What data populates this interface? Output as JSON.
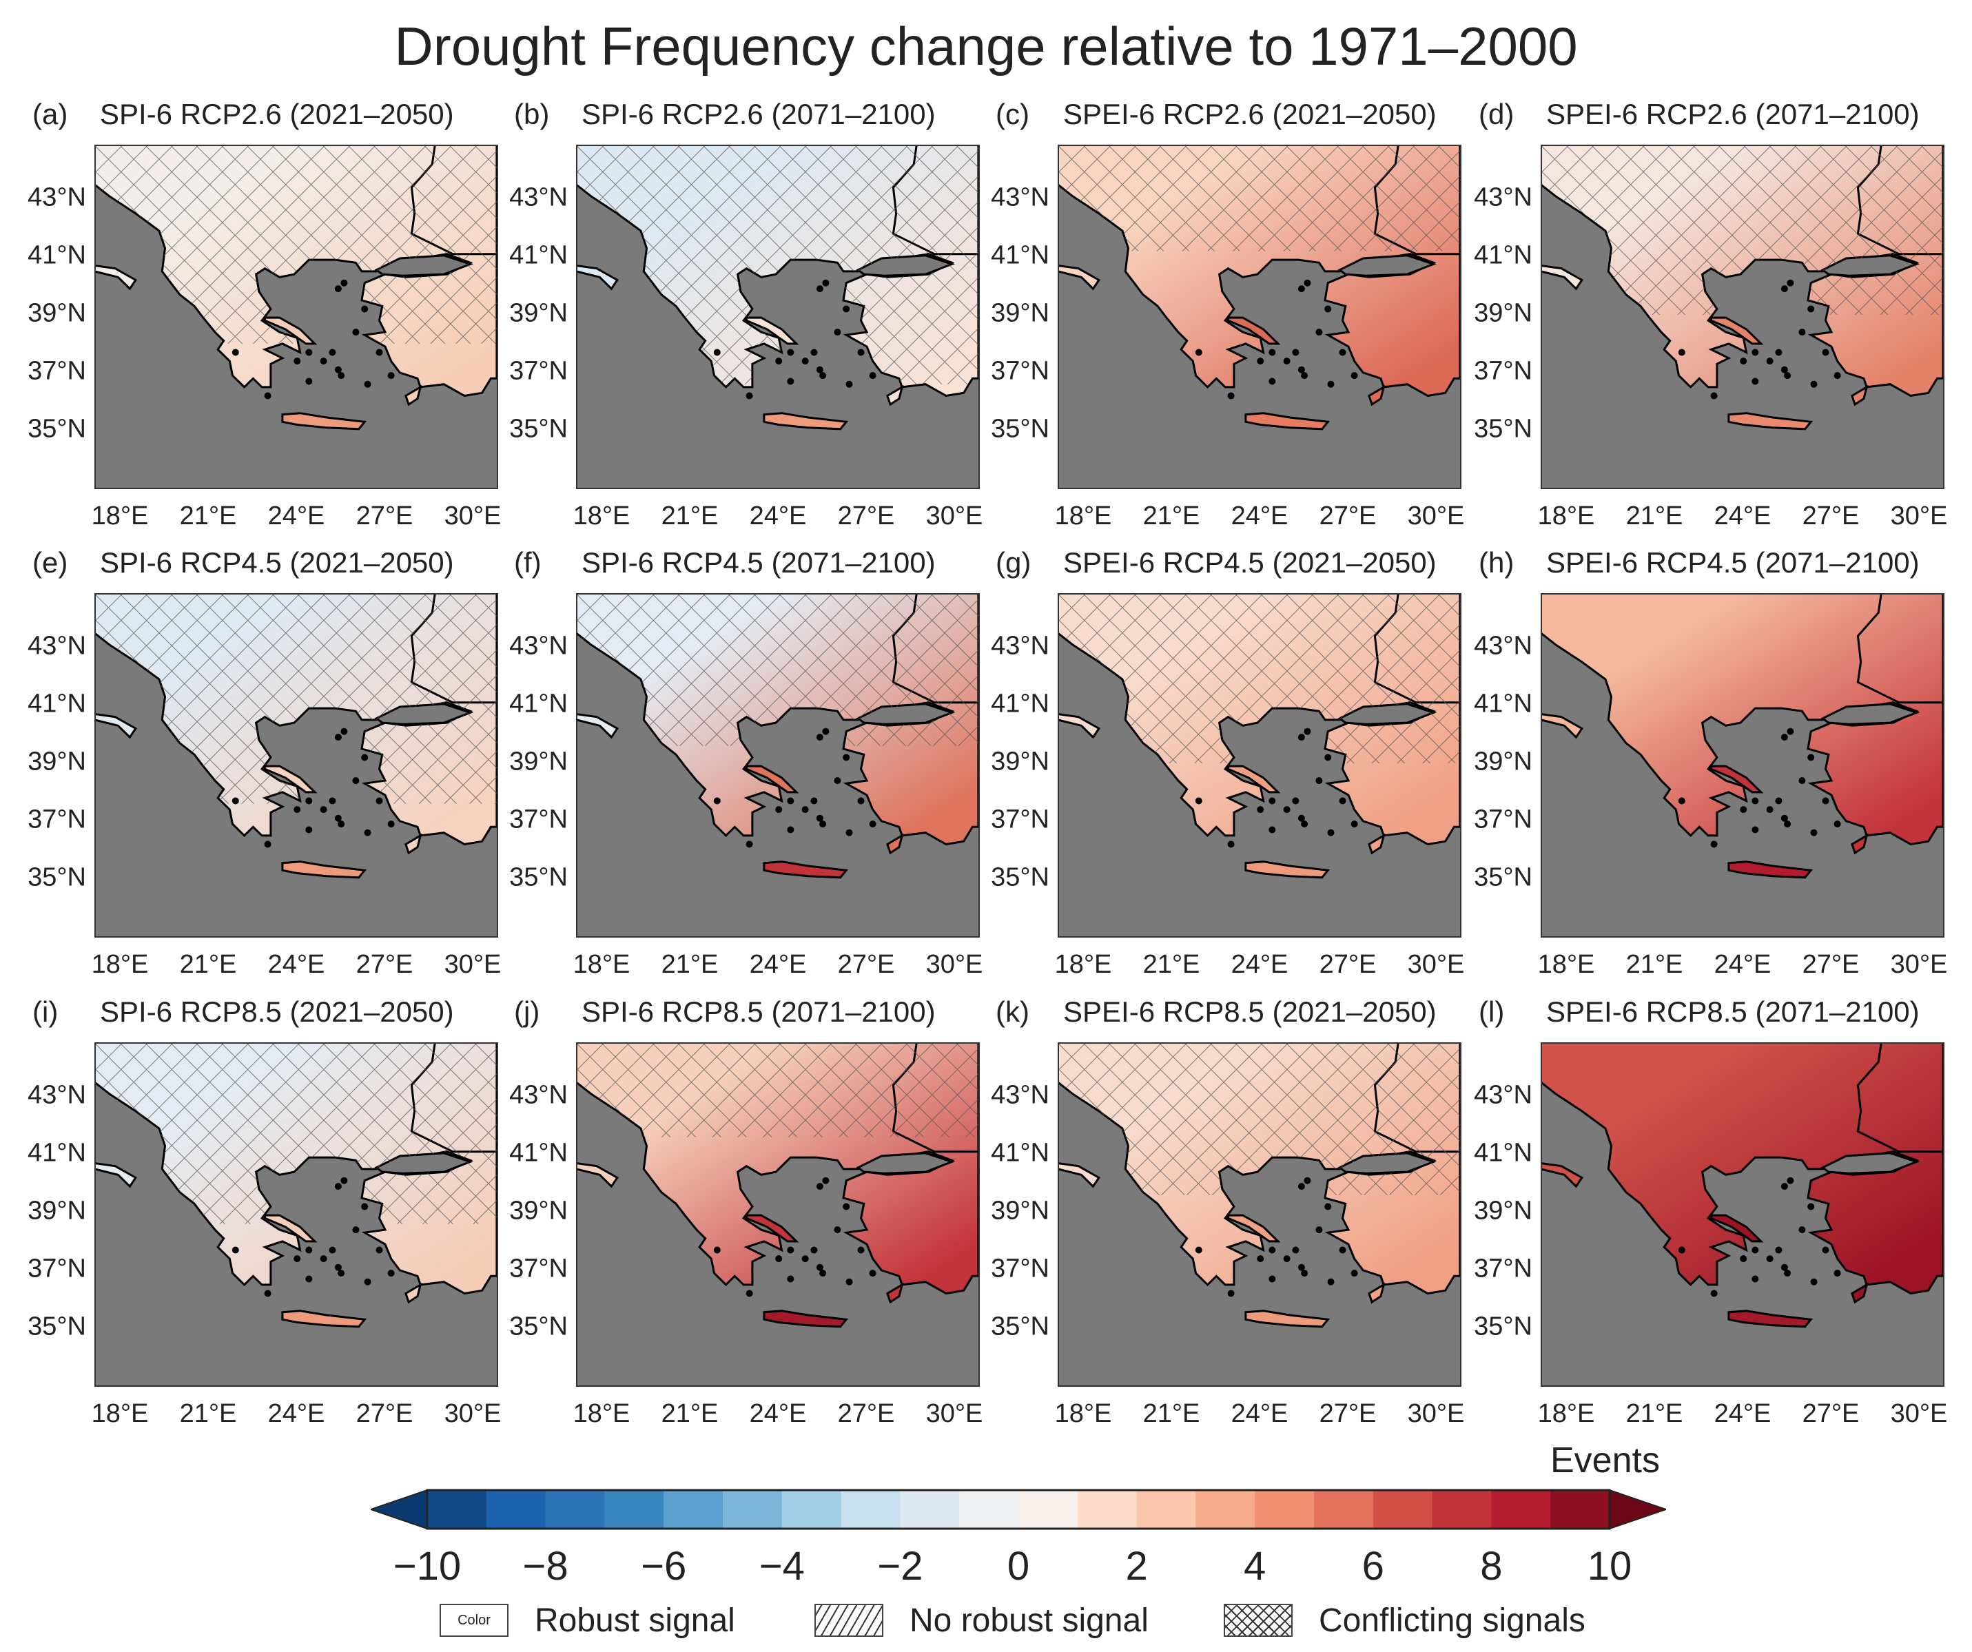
{
  "title": "Drought Frequency change relative to 1971–2000",
  "lat_labels": [
    "43°N",
    "41°N",
    "39°N",
    "37°N",
    "35°N"
  ],
  "lon_labels": [
    "18°E",
    "21°E",
    "24°E",
    "27°E",
    "30°E"
  ],
  "panels": [
    {
      "label": "(a)",
      "title": "SPI-6 RCP2.6 (2021–2050)",
      "north_color": "#f3eee9",
      "south_color": "#f7cdb6",
      "crete_color": "#ee9a7c",
      "hatch_north_of_lat": 38
    },
    {
      "label": "(b)",
      "title": "SPI-6 RCP2.6 (2071–2100)",
      "north_color": "#dde9f2",
      "south_color": "#f8e2d6",
      "crete_color": "#ee9a7c",
      "hatch_north_of_lat": 36.6
    },
    {
      "label": "(c)",
      "title": "SPEI-6 RCP2.6 (2021–2050)",
      "north_color": "#f9d4c0",
      "south_color": "#dc6a57",
      "crete_color": "#e67b61",
      "hatch_north_of_lat": 41.2
    },
    {
      "label": "(d)",
      "title": "SPEI-6 RCP2.6 (2071–2100)",
      "north_color": "#f5e6de",
      "south_color": "#e5836a",
      "crete_color": "#e98a70",
      "hatch_north_of_lat": 39
    },
    {
      "label": "(e)",
      "title": "SPI-6 RCP4.5 (2021–2050)",
      "north_color": "#dfe9f2",
      "south_color": "#f6d2bf",
      "crete_color": "#ee9a7c",
      "hatch_north_of_lat": 37.6
    },
    {
      "label": "(f)",
      "title": "SPI-6 RCP4.5 (2071–2100)",
      "north_color": "#e4ecf3",
      "south_color": "#df735c",
      "crete_color": "#c3343a",
      "hatch_north_of_lat": 39.6
    },
    {
      "label": "(g)",
      "title": "SPEI-6 RCP4.5 (2021–2050)",
      "north_color": "#f8dccd",
      "south_color": "#f0a084",
      "crete_color": "#ee9a7c",
      "hatch_north_of_lat": 39
    },
    {
      "label": "(h)",
      "title": "SPEI-6 RCP4.5 (2071–2100)",
      "north_color": "#f5b89c",
      "south_color": "#c3343a",
      "crete_color": "#b31b2e",
      "hatch_north_of_lat": 44.9
    },
    {
      "label": "(i)",
      "title": "SPI-6 RCP8.5 (2021–2050)",
      "north_color": "#e4ecf3",
      "south_color": "#f6cdb8",
      "crete_color": "#ee9a7c",
      "hatch_north_of_lat": 38.6
    },
    {
      "label": "(j)",
      "title": "SPI-6 RCP8.5 (2071–2100)",
      "north_color": "#f6d0bc",
      "south_color": "#c3343a",
      "crete_color": "#a31a2b",
      "hatch_north_of_lat": 41.6
    },
    {
      "label": "(k)",
      "title": "SPEI-6 RCP8.5 (2021–2050)",
      "north_color": "#f7dccd",
      "south_color": "#f0a084",
      "crete_color": "#ee9a7c",
      "hatch_north_of_lat": 39.6
    },
    {
      "label": "(l)",
      "title": "SPEI-6 RCP8.5 (2071–2100)",
      "north_color": "#d0524a",
      "south_color": "#9c1326",
      "crete_color": "#a31a2b",
      "hatch_north_of_lat": null
    }
  ],
  "chart_data": {
    "type": "heatmap",
    "title": "Drought Frequency change relative to 1971–2000",
    "xlabel": "",
    "ylabel": "",
    "xlim": [
      17.1,
      30.8
    ],
    "ylim": [
      32.9,
      44.8
    ],
    "colorbar": {
      "units": "Events",
      "range": [
        -10,
        10
      ],
      "extend": "both",
      "tick_labels": [
        "−10",
        "−8",
        "−6",
        "−4",
        "−2",
        "0",
        "2",
        "4",
        "6",
        "8",
        "10"
      ],
      "tick_values": [
        -10,
        -8,
        -6,
        -4,
        -2,
        0,
        2,
        4,
        6,
        8,
        10
      ],
      "bin_colors": [
        "#124a88",
        "#1a62ad",
        "#2c74b6",
        "#3985be",
        "#5a9fce",
        "#7eb6da",
        "#a4cde6",
        "#c9e0ef",
        "#dde8f1",
        "#eef0f2",
        "#f7f0ec",
        "#fbdccb",
        "#fbc8ad",
        "#f6ac8c",
        "#f09070",
        "#e2705a",
        "#d24f45",
        "#c3343a",
        "#b31b2e",
        "#8c0f22"
      ],
      "low_extend_color": "#0b3a70",
      "high_extend_color": "#6c0718"
    },
    "land_background_color": "#7a7a7a"
  },
  "legend": [
    {
      "swatch": "Color",
      "label": "Robust signal"
    },
    {
      "swatch": "",
      "label": "No robust signal"
    },
    {
      "swatch": "",
      "label": "Conflicting signals"
    }
  ]
}
